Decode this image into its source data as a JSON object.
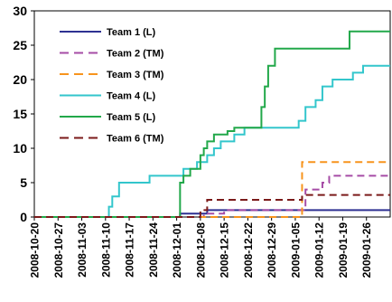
{
  "chart_data": {
    "type": "line",
    "title": "",
    "xlabel": "",
    "ylabel": "",
    "x_range": [
      "2008-10-20",
      "2009-02-02"
    ],
    "ylim": [
      0,
      30
    ],
    "y_ticks": [
      0,
      5,
      10,
      15,
      20,
      25,
      30
    ],
    "x_tick_labels": [
      "2008-10-20",
      "2008-10-27",
      "2008-11-03",
      "2008-11-10",
      "2008-11-17",
      "2008-11-24",
      "2008-12-01",
      "2008-12-08",
      "2008-12-15",
      "2008-12-22",
      "2008-12-29",
      "2009-01-05",
      "2009-01-12",
      "2009-01-19",
      "2009-01-26"
    ],
    "grid": false,
    "legend_position": "top-left",
    "series": [
      {
        "name": "Team 1 (L)",
        "color": "#2e3192",
        "dash": "solid",
        "step": true,
        "points": [
          [
            "2008-10-20",
            0
          ],
          [
            "2008-12-01",
            0
          ],
          [
            "2008-12-02",
            0.5
          ],
          [
            "2008-12-10",
            1
          ],
          [
            "2009-02-02",
            1
          ]
        ]
      },
      {
        "name": "Team 2 (TM)",
        "color": "#a64ca6",
        "dash": "dashed",
        "step": true,
        "points": [
          [
            "2008-10-20",
            0
          ],
          [
            "2008-12-08",
            0
          ],
          [
            "2008-12-09",
            0.5
          ],
          [
            "2008-12-15",
            1
          ],
          [
            "2009-01-07",
            1
          ],
          [
            "2009-01-08",
            4
          ],
          [
            "2009-01-12",
            4
          ],
          [
            "2009-01-13",
            5
          ],
          [
            "2009-01-15",
            6
          ],
          [
            "2009-02-02",
            6
          ]
        ]
      },
      {
        "name": "Team 3 (TM)",
        "color": "#f7941d",
        "dash": "dashed",
        "step": true,
        "points": [
          [
            "2008-10-20",
            0
          ],
          [
            "2009-01-06",
            0
          ],
          [
            "2009-01-07",
            8
          ],
          [
            "2009-02-02",
            8
          ]
        ]
      },
      {
        "name": "Team 4 (L)",
        "color": "#33c6cc",
        "dash": "solid",
        "step": true,
        "points": [
          [
            "2008-10-20",
            0
          ],
          [
            "2008-11-10",
            0
          ],
          [
            "2008-11-11",
            1.5
          ],
          [
            "2008-11-12",
            3
          ],
          [
            "2008-11-14",
            5
          ],
          [
            "2008-11-22",
            5
          ],
          [
            "2008-11-23",
            6
          ],
          [
            "2008-12-01",
            6
          ],
          [
            "2008-12-03",
            7
          ],
          [
            "2008-12-07",
            8
          ],
          [
            "2008-12-10",
            9
          ],
          [
            "2008-12-12",
            10
          ],
          [
            "2008-12-14",
            11
          ],
          [
            "2008-12-18",
            12
          ],
          [
            "2008-12-21",
            13
          ],
          [
            "2009-01-04",
            13
          ],
          [
            "2009-01-06",
            14
          ],
          [
            "2009-01-08",
            16
          ],
          [
            "2009-01-11",
            17
          ],
          [
            "2009-01-13",
            19
          ],
          [
            "2009-01-16",
            20
          ],
          [
            "2009-01-22",
            21
          ],
          [
            "2009-01-25",
            22
          ],
          [
            "2009-02-02",
            22
          ]
        ]
      },
      {
        "name": "Team 5 (L)",
        "color": "#22a84a",
        "dash": "solid",
        "step": true,
        "points": [
          [
            "2008-10-20",
            0
          ],
          [
            "2008-12-01",
            0
          ],
          [
            "2008-12-02",
            5
          ],
          [
            "2008-12-03",
            6
          ],
          [
            "2008-12-05",
            7
          ],
          [
            "2008-12-08",
            9
          ],
          [
            "2008-12-09",
            10
          ],
          [
            "2008-12-10",
            11
          ],
          [
            "2008-12-12",
            12
          ],
          [
            "2008-12-16",
            12.5
          ],
          [
            "2008-12-18",
            13
          ],
          [
            "2008-12-24",
            13
          ],
          [
            "2008-12-26",
            16
          ],
          [
            "2008-12-27",
            19
          ],
          [
            "2008-12-28",
            22
          ],
          [
            "2008-12-30",
            24.5
          ],
          [
            "2009-01-20",
            24.5
          ],
          [
            "2009-01-21",
            27
          ],
          [
            "2009-02-02",
            27
          ]
        ]
      },
      {
        "name": "Team 6 (TM)",
        "color": "#7b1a1a",
        "dash": "dashed",
        "step": true,
        "points": [
          [
            "2008-10-20",
            0
          ],
          [
            "2008-12-07",
            0
          ],
          [
            "2008-12-08",
            1
          ],
          [
            "2008-12-10",
            2.5
          ],
          [
            "2009-01-06",
            2.5
          ],
          [
            "2009-01-07",
            3.2
          ],
          [
            "2009-02-02",
            3.2
          ]
        ]
      }
    ]
  }
}
